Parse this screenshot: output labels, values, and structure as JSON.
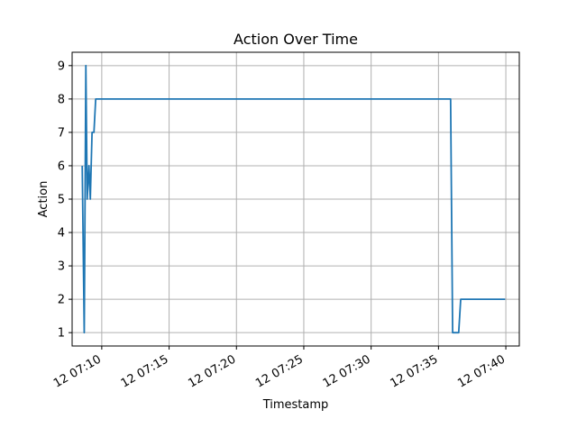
{
  "chart_data": {
    "type": "line",
    "title": "Action Over Time",
    "xlabel": "Timestamp",
    "ylabel": "Action",
    "x_unit": "minutes past 07:00 on day 12",
    "xlim": [
      7.8,
      41.0
    ],
    "ylim": [
      0.6,
      9.4
    ],
    "grid": true,
    "legend": "none",
    "x_ticks": [
      {
        "value": 10,
        "label": "12 07:10"
      },
      {
        "value": 15,
        "label": "12 07:15"
      },
      {
        "value": 20,
        "label": "12 07:20"
      },
      {
        "value": 25,
        "label": "12 07:25"
      },
      {
        "value": 30,
        "label": "12 07:30"
      },
      {
        "value": 35,
        "label": "12 07:35"
      },
      {
        "value": 40,
        "label": "12 07:40"
      }
    ],
    "y_ticks": [
      {
        "value": 1,
        "label": "1"
      },
      {
        "value": 2,
        "label": "2"
      },
      {
        "value": 3,
        "label": "3"
      },
      {
        "value": 4,
        "label": "4"
      },
      {
        "value": 5,
        "label": "5"
      },
      {
        "value": 6,
        "label": "6"
      },
      {
        "value": 7,
        "label": "7"
      },
      {
        "value": 8,
        "label": "8"
      },
      {
        "value": 9,
        "label": "9"
      }
    ],
    "series": [
      {
        "color": "#1f77b4",
        "x": [
          8.55,
          8.7,
          8.82,
          8.92,
          9.05,
          9.15,
          9.28,
          9.42,
          9.55,
          35.9,
          36.05,
          36.5,
          36.65,
          39.95
        ],
        "y": [
          6,
          1,
          9,
          5,
          6,
          5,
          7,
          7,
          8,
          8,
          1,
          1,
          2,
          2
        ]
      }
    ]
  }
}
